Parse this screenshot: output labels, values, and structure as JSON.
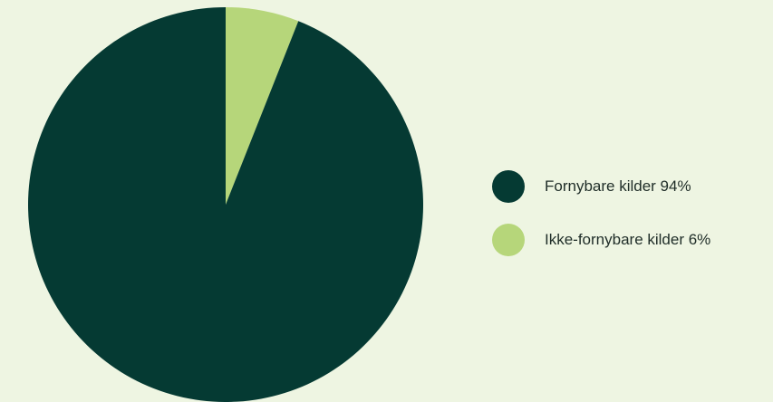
{
  "chart_data": {
    "type": "pie",
    "categories": [
      "Fornybare kilder",
      "Ikke-fornybare kilder"
    ],
    "values": [
      94,
      6
    ],
    "colors": [
      "#053a33",
      "#b6d67a"
    ],
    "legend_labels": [
      "Fornybare kilder 94%",
      "Ikke-fornybare kilder 6%"
    ],
    "legend_position": "right"
  },
  "background_color": "#eef5e2"
}
